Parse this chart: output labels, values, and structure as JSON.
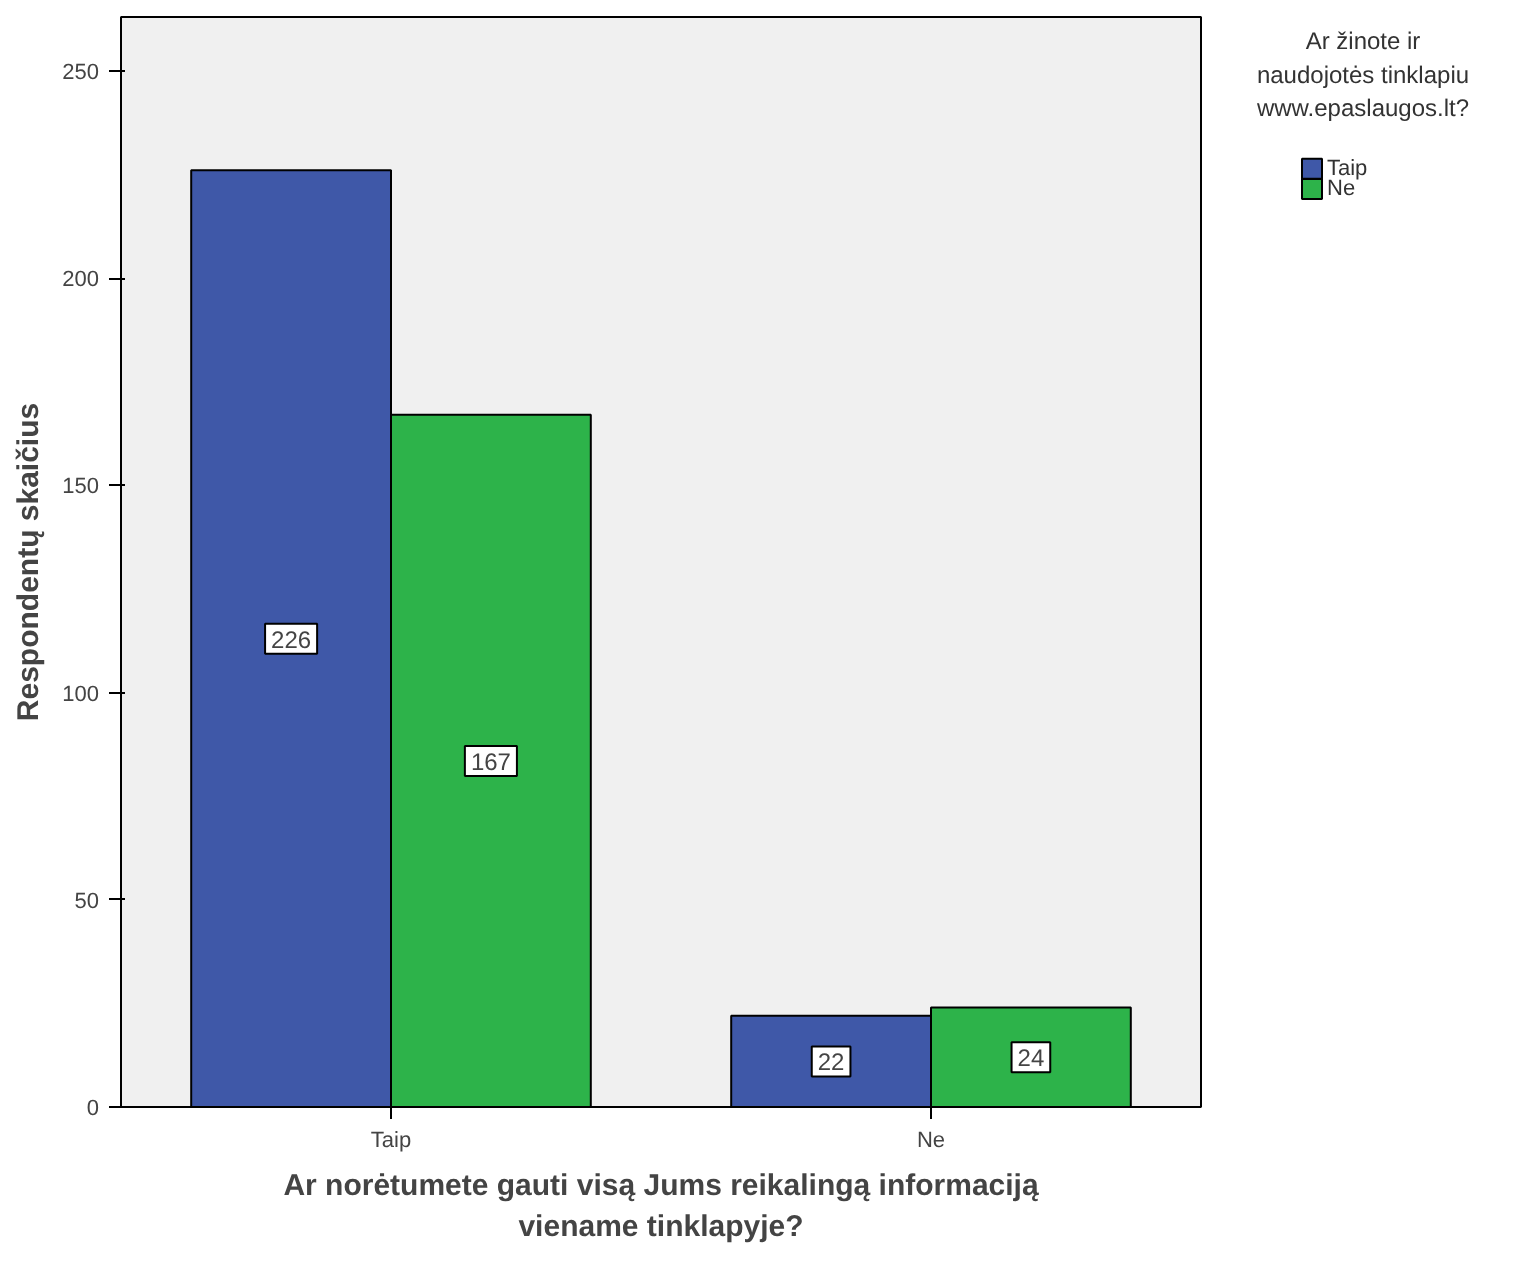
{
  "chart_data": {
    "type": "bar",
    "categories": [
      "Taip",
      "Ne"
    ],
    "xlabel": "Ar norėtumete gauti visą Jums reikalingą informaciją viename tinklapyje?",
    "ylabel": "Respondentų skaičius",
    "legend_title": "Ar žinote ir naudojotės tinklapiu www.epaslaugos.lt?",
    "series": [
      {
        "name": "Taip",
        "color": "#3f58a8",
        "values": [
          226,
          22
        ]
      },
      {
        "name": "Ne",
        "color": "#2db34a",
        "values": [
          167,
          24
        ]
      }
    ],
    "ylim": [
      0,
      263
    ],
    "yticks": [
      0,
      50,
      100,
      150,
      200,
      250
    ],
    "grid": false,
    "legend": "top right",
    "data_labels": true
  }
}
